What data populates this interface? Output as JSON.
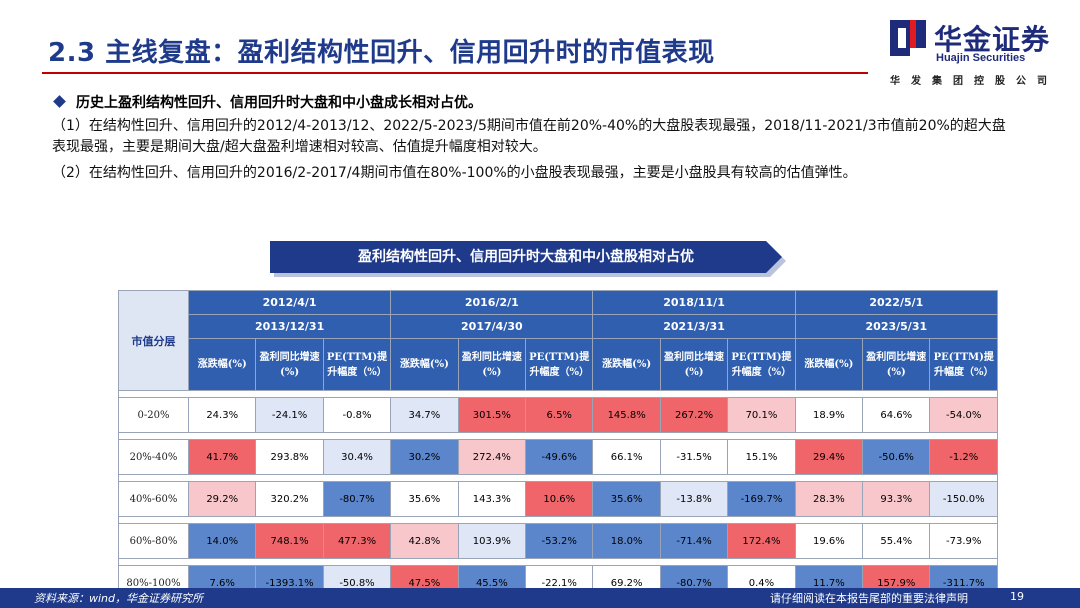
{
  "header": {
    "title": "2.3 主线复盘：盈利结构性回升、信用回升时的市值表现",
    "logo_cn": "华金证券",
    "logo_en": "Huajin Securities",
    "logo_sub": "华发集团控股公司",
    "brand_color": "#1f3a8a",
    "rule_color": "#c00000"
  },
  "summary": {
    "bullet": "历史上盈利结构性回升、信用回升时大盘和中小盘成长相对占优。",
    "para1": "（1）在结构性回升、信用回升的2012/4-2013/12、2022/5-2023/5期间市值在前20%-40%的大盘股表现最强，2018/11-2021/3市值前20%的超大盘表现最强，主要是期间大盘/超大盘盈利增速相对较高、估值提升幅度相对较大。",
    "para2": "（2）在结构性回升、信用回升的2016/2-2017/4期间市值在80%-100%的小盘股表现最强，主要是小盘股具有较高的估值弹性。"
  },
  "banner": {
    "text": "盈利结构性回升、信用回升时大盘和中小盘股相对占优"
  },
  "table": {
    "corner_label": "市值分层",
    "periods": [
      {
        "start": "2012/4/1",
        "end": "2013/12/31"
      },
      {
        "start": "2016/2/1",
        "end": "2017/4/30"
      },
      {
        "start": "2018/11/1",
        "end": "2021/3/31"
      },
      {
        "start": "2022/5/1",
        "end": "2023/5/31"
      }
    ],
    "metrics": [
      "涨跌幅(%)",
      "盈利同比增速(%)",
      "PE(TTM)提升幅度（%）"
    ],
    "rows": [
      {
        "label": "0-20%",
        "cells": [
          {
            "v": "24.3%",
            "c": "#ffffff"
          },
          {
            "v": "-24.1%",
            "c": "#dfe6f5"
          },
          {
            "v": "-0.8%",
            "c": "#ffffff"
          },
          {
            "v": "34.7%",
            "c": "#dfe6f5"
          },
          {
            "v": "301.5%",
            "c": "#f0656a"
          },
          {
            "v": "6.5%",
            "c": "#f0656a"
          },
          {
            "v": "145.8%",
            "c": "#f0656a"
          },
          {
            "v": "267.2%",
            "c": "#f0656a"
          },
          {
            "v": "70.1%",
            "c": "#f8c7cb"
          },
          {
            "v": "18.9%",
            "c": "#ffffff"
          },
          {
            "v": "64.6%",
            "c": "#ffffff"
          },
          {
            "v": "-54.0%",
            "c": "#f8c7cb"
          }
        ]
      },
      {
        "label": "20%-40%",
        "cells": [
          {
            "v": "41.7%",
            "c": "#f0656a"
          },
          {
            "v": "293.8%",
            "c": "#ffffff"
          },
          {
            "v": "30.4%",
            "c": "#dfe6f5"
          },
          {
            "v": "30.2%",
            "c": "#5b86cc"
          },
          {
            "v": "272.4%",
            "c": "#f8c7cb"
          },
          {
            "v": "-49.6%",
            "c": "#5b86cc"
          },
          {
            "v": "66.1%",
            "c": "#ffffff"
          },
          {
            "v": "-31.5%",
            "c": "#ffffff"
          },
          {
            "v": "15.1%",
            "c": "#ffffff"
          },
          {
            "v": "29.4%",
            "c": "#f0656a"
          },
          {
            "v": "-50.6%",
            "c": "#5b86cc"
          },
          {
            "v": "-1.2%",
            "c": "#f0656a"
          }
        ]
      },
      {
        "label": "40%-60%",
        "cells": [
          {
            "v": "29.2%",
            "c": "#f8c7cb"
          },
          {
            "v": "320.2%",
            "c": "#ffffff"
          },
          {
            "v": "-80.7%",
            "c": "#5b86cc"
          },
          {
            "v": "35.6%",
            "c": "#ffffff"
          },
          {
            "v": "143.3%",
            "c": "#ffffff"
          },
          {
            "v": "10.6%",
            "c": "#f0656a"
          },
          {
            "v": "35.6%",
            "c": "#5b86cc"
          },
          {
            "v": "-13.8%",
            "c": "#dfe6f5"
          },
          {
            "v": "-169.7%",
            "c": "#5b86cc"
          },
          {
            "v": "28.3%",
            "c": "#f8c7cb"
          },
          {
            "v": "93.3%",
            "c": "#f8c7cb"
          },
          {
            "v": "-150.0%",
            "c": "#dfe6f5"
          }
        ]
      },
      {
        "label": "60%-80%",
        "cells": [
          {
            "v": "14.0%",
            "c": "#5b86cc"
          },
          {
            "v": "748.1%",
            "c": "#f0656a"
          },
          {
            "v": "477.3%",
            "c": "#f0656a"
          },
          {
            "v": "42.8%",
            "c": "#f8c7cb"
          },
          {
            "v": "103.9%",
            "c": "#dfe6f5"
          },
          {
            "v": "-53.2%",
            "c": "#5b86cc"
          },
          {
            "v": "18.0%",
            "c": "#5b86cc"
          },
          {
            "v": "-71.4%",
            "c": "#5b86cc"
          },
          {
            "v": "172.4%",
            "c": "#f0656a"
          },
          {
            "v": "19.6%",
            "c": "#ffffff"
          },
          {
            "v": "55.4%",
            "c": "#ffffff"
          },
          {
            "v": "-73.9%",
            "c": "#ffffff"
          }
        ]
      },
      {
        "label": "80%-100%",
        "cells": [
          {
            "v": "7.6%",
            "c": "#5b86cc"
          },
          {
            "v": "-1393.1%",
            "c": "#5b86cc"
          },
          {
            "v": "-50.8%",
            "c": "#dfe6f5"
          },
          {
            "v": "47.5%",
            "c": "#f0656a"
          },
          {
            "v": "45.5%",
            "c": "#5b86cc"
          },
          {
            "v": "-22.1%",
            "c": "#ffffff"
          },
          {
            "v": "69.2%",
            "c": "#ffffff"
          },
          {
            "v": "-80.7%",
            "c": "#5b86cc"
          },
          {
            "v": "0.4%",
            "c": "#ffffff"
          },
          {
            "v": "11.7%",
            "c": "#5b86cc"
          },
          {
            "v": "157.9%",
            "c": "#f0656a"
          },
          {
            "v": "-311.7%",
            "c": "#5b86cc"
          }
        ]
      }
    ]
  },
  "footer": {
    "source": "资料来源：wind，华金证券研究所",
    "disclaimer": "请仔细阅读在本报告尾部的重要法律声明",
    "page": "19"
  }
}
